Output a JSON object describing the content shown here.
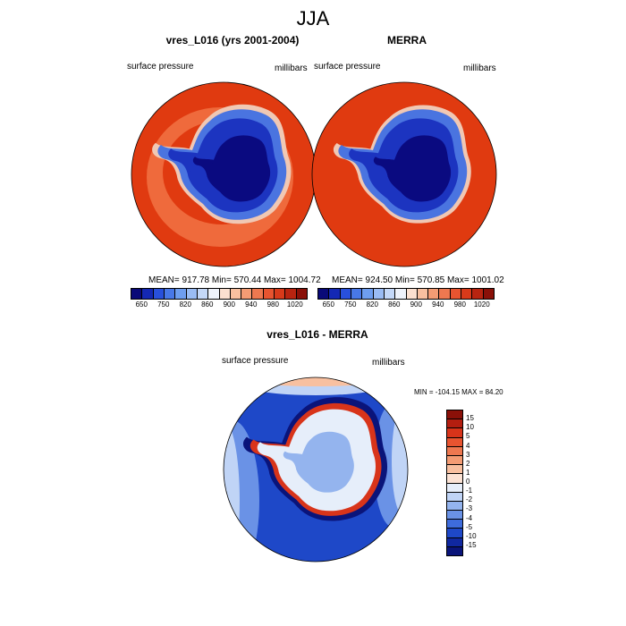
{
  "figure": {
    "title": "JJA",
    "panels": [
      {
        "title": "vres_L016 (yrs 2001-2004)",
        "left_label": "surface pressure",
        "right_label": "millibars",
        "stats": "MEAN= 917.78  Min= 570.44  Max= 1004.72"
      },
      {
        "title": "MERRA",
        "left_label": "surface pressure",
        "right_label": "millibars",
        "stats": "MEAN= 924.50  Min= 570.85  Max= 1001.02"
      }
    ],
    "diff_panel": {
      "title": "vres_L016 - MERRA",
      "left_label": "surface pressure",
      "right_label": "millibars",
      "stats": "MIN = -104.15 MAX =  84.20"
    },
    "colorbar_top": {
      "labels": [
        "650",
        "750",
        "820",
        "860",
        "900",
        "940",
        "980",
        "1020"
      ],
      "colors": [
        "#0a0a78",
        "#1428b4",
        "#2850dc",
        "#4878e8",
        "#6e9ef0",
        "#9abcf4",
        "#c4d8f8",
        "#eef2fa",
        "#fbe0d0",
        "#f8c0a0",
        "#f49c74",
        "#ee7850",
        "#e85430",
        "#d83a1a",
        "#b82410",
        "#8a1008"
      ]
    },
    "colorbar_diff": {
      "labels": [
        "15",
        "10",
        "5",
        "4",
        "3",
        "2",
        "1",
        "0",
        "-1",
        "-2",
        "-3",
        "-4",
        "-5",
        "-10",
        "-15"
      ],
      "colors": [
        "#8a1008",
        "#b41e10",
        "#d8341a",
        "#e85430",
        "#ee7850",
        "#f49c74",
        "#f8c0a0",
        "#fbe2d4",
        "#e6eefa",
        "#c0d4f6",
        "#94b4ee",
        "#6a92e6",
        "#3e6cdc",
        "#1e48c8",
        "#1028a0",
        "#0a147a"
      ]
    },
    "map_colors": {
      "ocean_high": "#e03a10",
      "ocean_band": "#ef6a3c",
      "ice_edge": "#f0c8b4",
      "ice_low": "#0a0a80",
      "ice_mid": "#1c34c0",
      "ice_light": "#4a74e0",
      "diff_bg": "#1e48c8",
      "diff_light": "#6a92e6",
      "diff_pale": "#c0d4f6"
    }
  }
}
